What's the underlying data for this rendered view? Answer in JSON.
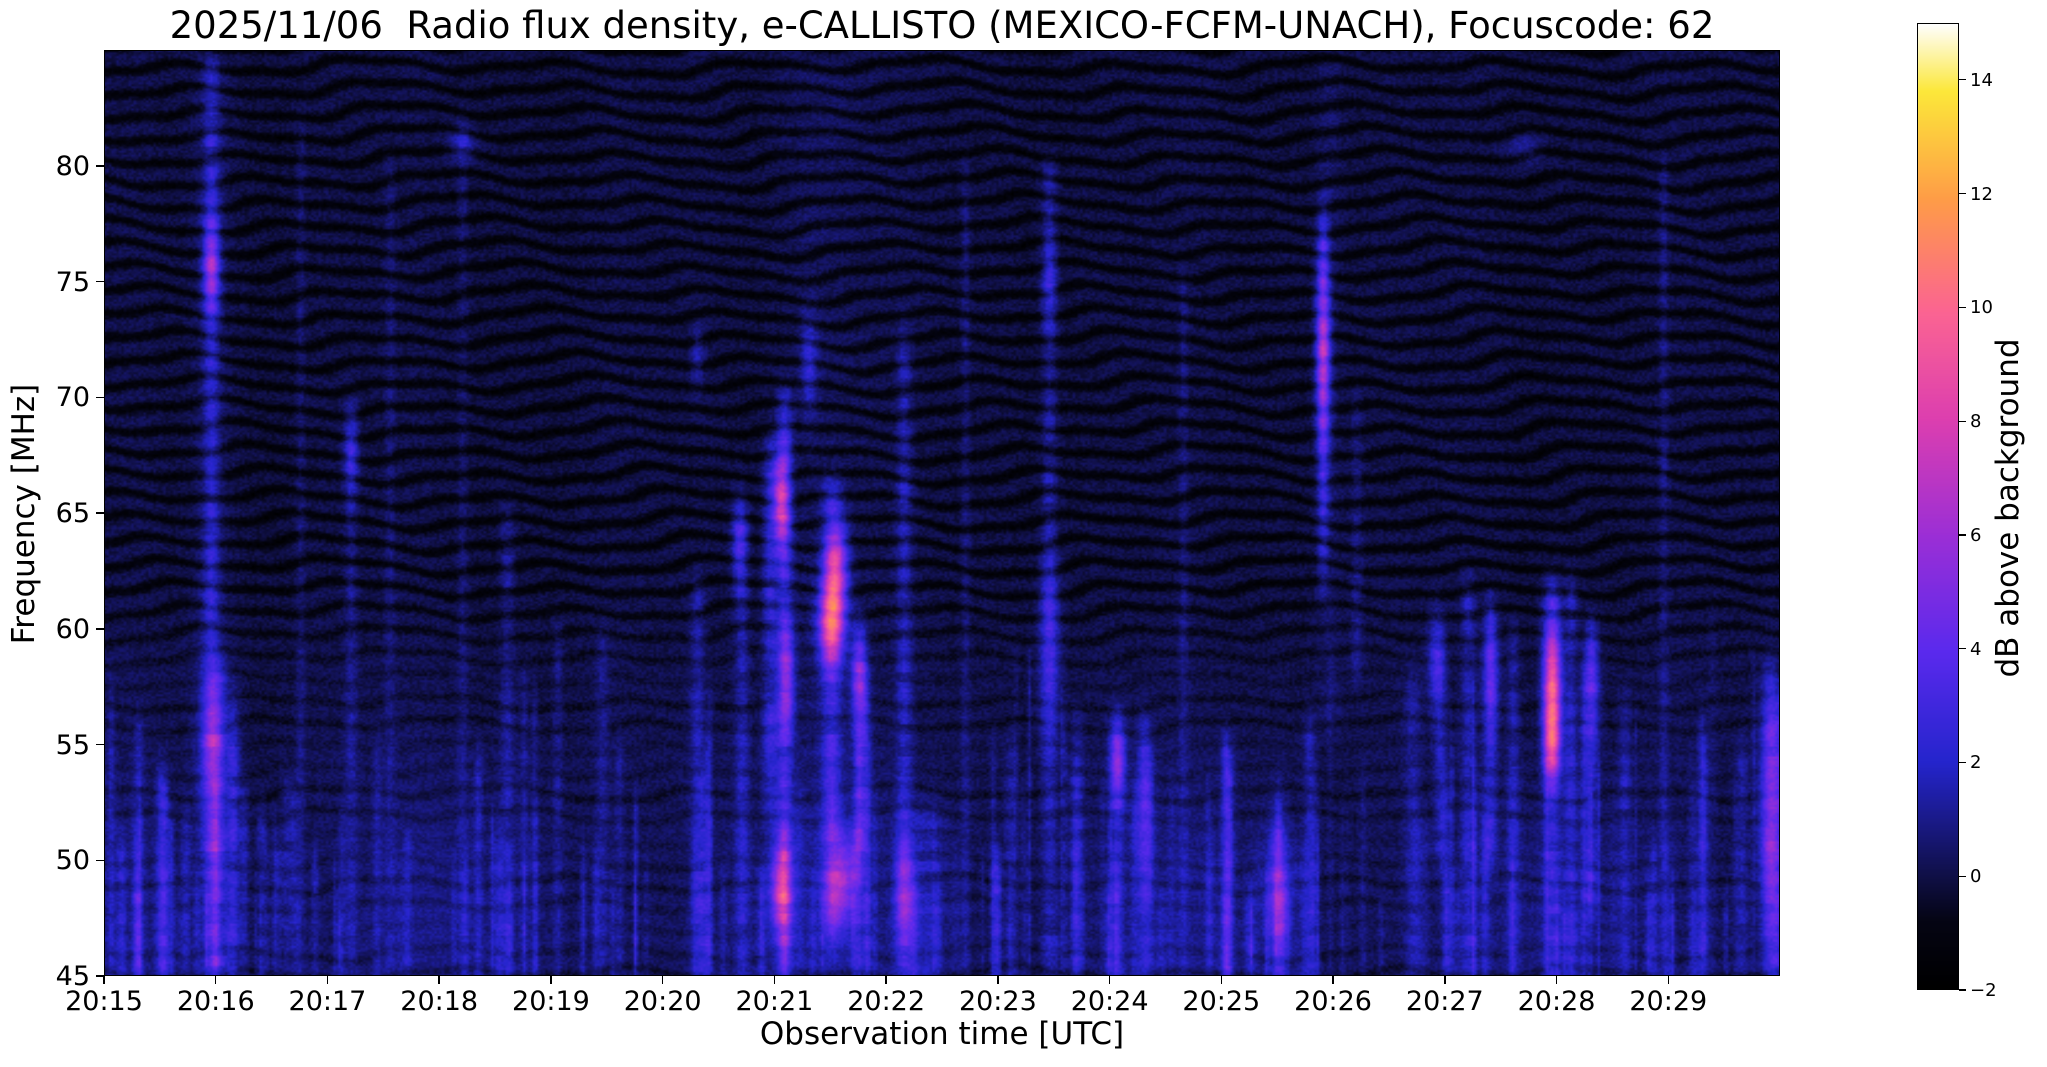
{
  "chart_data": {
    "type": "heatmap",
    "title": "2025/11/06  Radio flux density, e-CALLISTO (MEXICO-FCFM-UNACH), Focuscode: 62",
    "date": "2025/11/06",
    "station": "MEXICO-FCFM-UNACH",
    "focuscode": "62",
    "xlabel": "Observation time [UTC]",
    "ylabel": "Frequency [MHz]",
    "x_ticks": [
      "20:15",
      "20:16",
      "20:17",
      "20:18",
      "20:19",
      "20:20",
      "20:21",
      "20:22",
      "20:23",
      "20:24",
      "20:25",
      "20:26",
      "20:27",
      "20:28",
      "20:29"
    ],
    "x_minutes_span": 15,
    "y_ticks": [
      45,
      50,
      55,
      60,
      65,
      70,
      75,
      80
    ],
    "y_range": [
      45,
      85
    ],
    "grid": false,
    "legend": "colorbar-right",
    "background_level_db": 0,
    "colorbar": {
      "label": "dB above background",
      "ticks": [
        -2,
        0,
        2,
        4,
        6,
        8,
        10,
        12,
        14
      ],
      "range": [
        -2,
        15
      ],
      "colormap": "gnuplot2-like black-blue-magenta-yellow-white",
      "colormap_stops": [
        [
          0.0,
          "#000000"
        ],
        [
          0.07,
          "#050514"
        ],
        [
          0.118,
          "#101048"
        ],
        [
          0.235,
          "#2525cd"
        ],
        [
          0.35,
          "#5b2aee"
        ],
        [
          0.47,
          "#9c2fd6"
        ],
        [
          0.59,
          "#dd3fb0"
        ],
        [
          0.7,
          "#fb6493"
        ],
        [
          0.82,
          "#ff9e47"
        ],
        [
          0.93,
          "#fce83a"
        ],
        [
          1.0,
          "#ffffff"
        ]
      ]
    },
    "features": {
      "description": "Dark navy background with wavy horizontal interference fringes (stronger above 58 MHz), many faint blue vertical RFI streaks concentrated below 58 MHz, bright magenta/pink bursts near 20:21-20:22 (48-66 MHz), a narrow bright streak 66-78 MHz near 20:26, and a bright pink streak 54-60 MHz near 20:28.",
      "fringes": {
        "period_mhz": 0.98,
        "wave_period_min": 1.7,
        "depth_db_high": 1.5,
        "depth_db_low": 0.6
      },
      "streaks": [
        [
          0.3,
          0.03,
          45,
          56,
          1.4
        ],
        [
          0.5,
          0.035,
          45,
          54,
          1.8
        ],
        [
          0.72,
          0.03,
          45,
          52,
          1.3
        ],
        [
          0.95,
          0.12,
          45,
          84.5,
          0.7
        ],
        [
          0.95,
          0.05,
          45,
          84.5,
          1.8
        ],
        [
          1.0,
          0.06,
          45,
          58,
          2.4
        ],
        [
          1.15,
          0.04,
          45,
          57,
          2.2
        ],
        [
          1.4,
          0.03,
          45,
          52,
          1.4
        ],
        [
          1.75,
          0.03,
          45,
          82,
          0.9
        ],
        [
          2.2,
          0.04,
          45,
          70,
          1.1
        ],
        [
          2.55,
          0.035,
          45,
          80,
          0.8
        ],
        [
          3.2,
          0.035,
          45,
          82,
          0.8
        ],
        [
          3.6,
          0.045,
          45,
          65,
          1.3
        ],
        [
          3.75,
          0.03,
          45,
          58,
          1.0
        ],
        [
          4.05,
          0.03,
          45,
          60,
          1.0
        ],
        [
          4.45,
          0.04,
          45,
          60,
          1.1
        ],
        [
          4.6,
          0.03,
          45,
          55,
          1.0
        ],
        [
          5.3,
          0.045,
          45,
          62,
          1.5
        ],
        [
          5.7,
          0.045,
          45,
          65,
          1.7
        ],
        [
          5.95,
          0.05,
          52,
          68,
          2.3
        ],
        [
          6.08,
          0.05,
          45,
          70,
          2.8
        ],
        [
          6.4,
          0.3,
          45,
          84.5,
          0.5
        ],
        [
          6.5,
          0.06,
          47,
          66,
          2.8
        ],
        [
          6.75,
          0.045,
          50,
          60,
          2.2
        ],
        [
          7.15,
          0.05,
          45,
          73,
          1.8
        ],
        [
          7.35,
          0.12,
          45,
          52,
          1.4
        ],
        [
          7.7,
          0.03,
          45,
          80,
          1.0
        ],
        [
          8.1,
          0.04,
          45,
          55,
          1.1
        ],
        [
          8.45,
          0.05,
          45,
          80,
          1.7
        ],
        [
          8.7,
          0.04,
          45,
          56,
          1.7
        ],
        [
          9.06,
          0.045,
          45,
          56,
          1.9
        ],
        [
          9.3,
          0.04,
          45,
          56,
          1.7
        ],
        [
          9.65,
          0.03,
          45,
          75,
          0.9
        ],
        [
          10.05,
          0.04,
          45,
          55,
          1.5
        ],
        [
          10.5,
          0.05,
          45,
          52,
          2.0
        ],
        [
          10.78,
          0.04,
          45,
          56,
          1.6
        ],
        [
          10.9,
          0.035,
          62,
          78,
          2.2
        ],
        [
          10.95,
          0.09,
          56,
          84.5,
          0.7
        ],
        [
          11.2,
          0.04,
          58,
          70,
          1.1
        ],
        [
          11.7,
          0.05,
          45,
          58,
          1.3
        ],
        [
          11.95,
          0.04,
          50,
          60,
          1.6
        ],
        [
          12.2,
          0.045,
          45,
          62,
          1.7
        ],
        [
          12.4,
          0.04,
          50,
          61,
          2.0
        ],
        [
          12.6,
          0.04,
          45,
          60,
          1.5
        ],
        [
          12.95,
          0.055,
          45,
          62,
          2.2
        ],
        [
          13.12,
          0.04,
          45,
          62,
          1.9
        ],
        [
          13.3,
          0.045,
          48,
          60,
          1.7
        ],
        [
          13.6,
          0.04,
          45,
          57,
          1.5
        ],
        [
          13.95,
          0.03,
          45,
          80,
          1.0
        ],
        [
          14.3,
          0.03,
          45,
          55,
          1.0
        ],
        [
          14.65,
          0.04,
          45,
          55,
          1.3
        ],
        [
          14.9,
          0.05,
          45,
          58,
          2.3
        ],
        [
          14.99,
          0.05,
          45,
          57,
          2.0
        ]
      ],
      "hotspots": [
        [
          0.95,
          75.6,
          0.05,
          1.4,
          4.5
        ],
        [
          0.95,
          55.0,
          0.08,
          2.5,
          2.5
        ],
        [
          2.2,
          67.5,
          0.05,
          1.2,
          2.0
        ],
        [
          3.2,
          81.0,
          0.09,
          0.5,
          1.8
        ],
        [
          5.3,
          71.8,
          0.04,
          1.0,
          1.6
        ],
        [
          5.67,
          63.8,
          0.05,
          1.3,
          2.6
        ],
        [
          6.05,
          65.6,
          0.05,
          1.3,
          6.5
        ],
        [
          6.05,
          48.8,
          0.07,
          1.3,
          6.0
        ],
        [
          6.1,
          58.0,
          0.05,
          1.5,
          3.5
        ],
        [
          6.3,
          71.5,
          0.05,
          1.5,
          2.2
        ],
        [
          6.5,
          60.3,
          0.08,
          1.2,
          8.5
        ],
        [
          6.55,
          62.8,
          0.07,
          1.4,
          5.5
        ],
        [
          6.6,
          49.2,
          0.09,
          1.4,
          4.5
        ],
        [
          6.75,
          57.8,
          0.05,
          1.2,
          4.0
        ],
        [
          7.15,
          48.5,
          0.06,
          1.6,
          3.5
        ],
        [
          8.45,
          59.5,
          0.07,
          2.5,
          2.2
        ],
        [
          8.45,
          75.0,
          0.05,
          1.5,
          1.6
        ],
        [
          9.06,
          54.2,
          0.05,
          1.2,
          3.8
        ],
        [
          9.3,
          52.0,
          0.06,
          2.0,
          2.0
        ],
        [
          10.5,
          48.5,
          0.08,
          1.8,
          3.2
        ],
        [
          10.9,
          72.0,
          0.045,
          2.8,
          5.0
        ],
        [
          11.9,
          58.5,
          0.05,
          1.5,
          2.2
        ],
        [
          12.4,
          58.0,
          0.05,
          1.6,
          2.8
        ],
        [
          12.7,
          80.8,
          0.12,
          0.5,
          1.4
        ],
        [
          12.95,
          57.5,
          0.055,
          1.9,
          8.0
        ],
        [
          12.95,
          55.0,
          0.05,
          1.0,
          5.0
        ],
        [
          13.3,
          57.5,
          0.05,
          1.5,
          2.5
        ],
        [
          14.9,
          51.5,
          0.07,
          3.5,
          3.0
        ]
      ]
    }
  }
}
